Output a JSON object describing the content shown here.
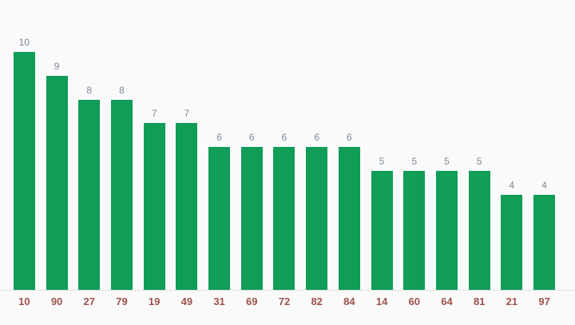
{
  "chart_data": {
    "type": "bar",
    "title": "",
    "xlabel": "",
    "ylabel": "",
    "categories": [
      "10",
      "90",
      "27",
      "79",
      "19",
      "49",
      "31",
      "69",
      "72",
      "82",
      "84",
      "14",
      "60",
      "64",
      "81",
      "21",
      "97"
    ],
    "values": [
      10,
      9,
      8,
      8,
      7,
      7,
      6,
      6,
      6,
      6,
      6,
      5,
      5,
      5,
      5,
      4,
      4
    ],
    "ylim": [
      0,
      10
    ],
    "grid": false,
    "legend": "none",
    "value_labels_position": "above-bars",
    "colors": {
      "bar": "#0f9d58",
      "value_label": "#7b8a9a",
      "tick_label": "#9e524a",
      "axis_line": "#e0e0e0",
      "background": "#fafafa"
    }
  }
}
